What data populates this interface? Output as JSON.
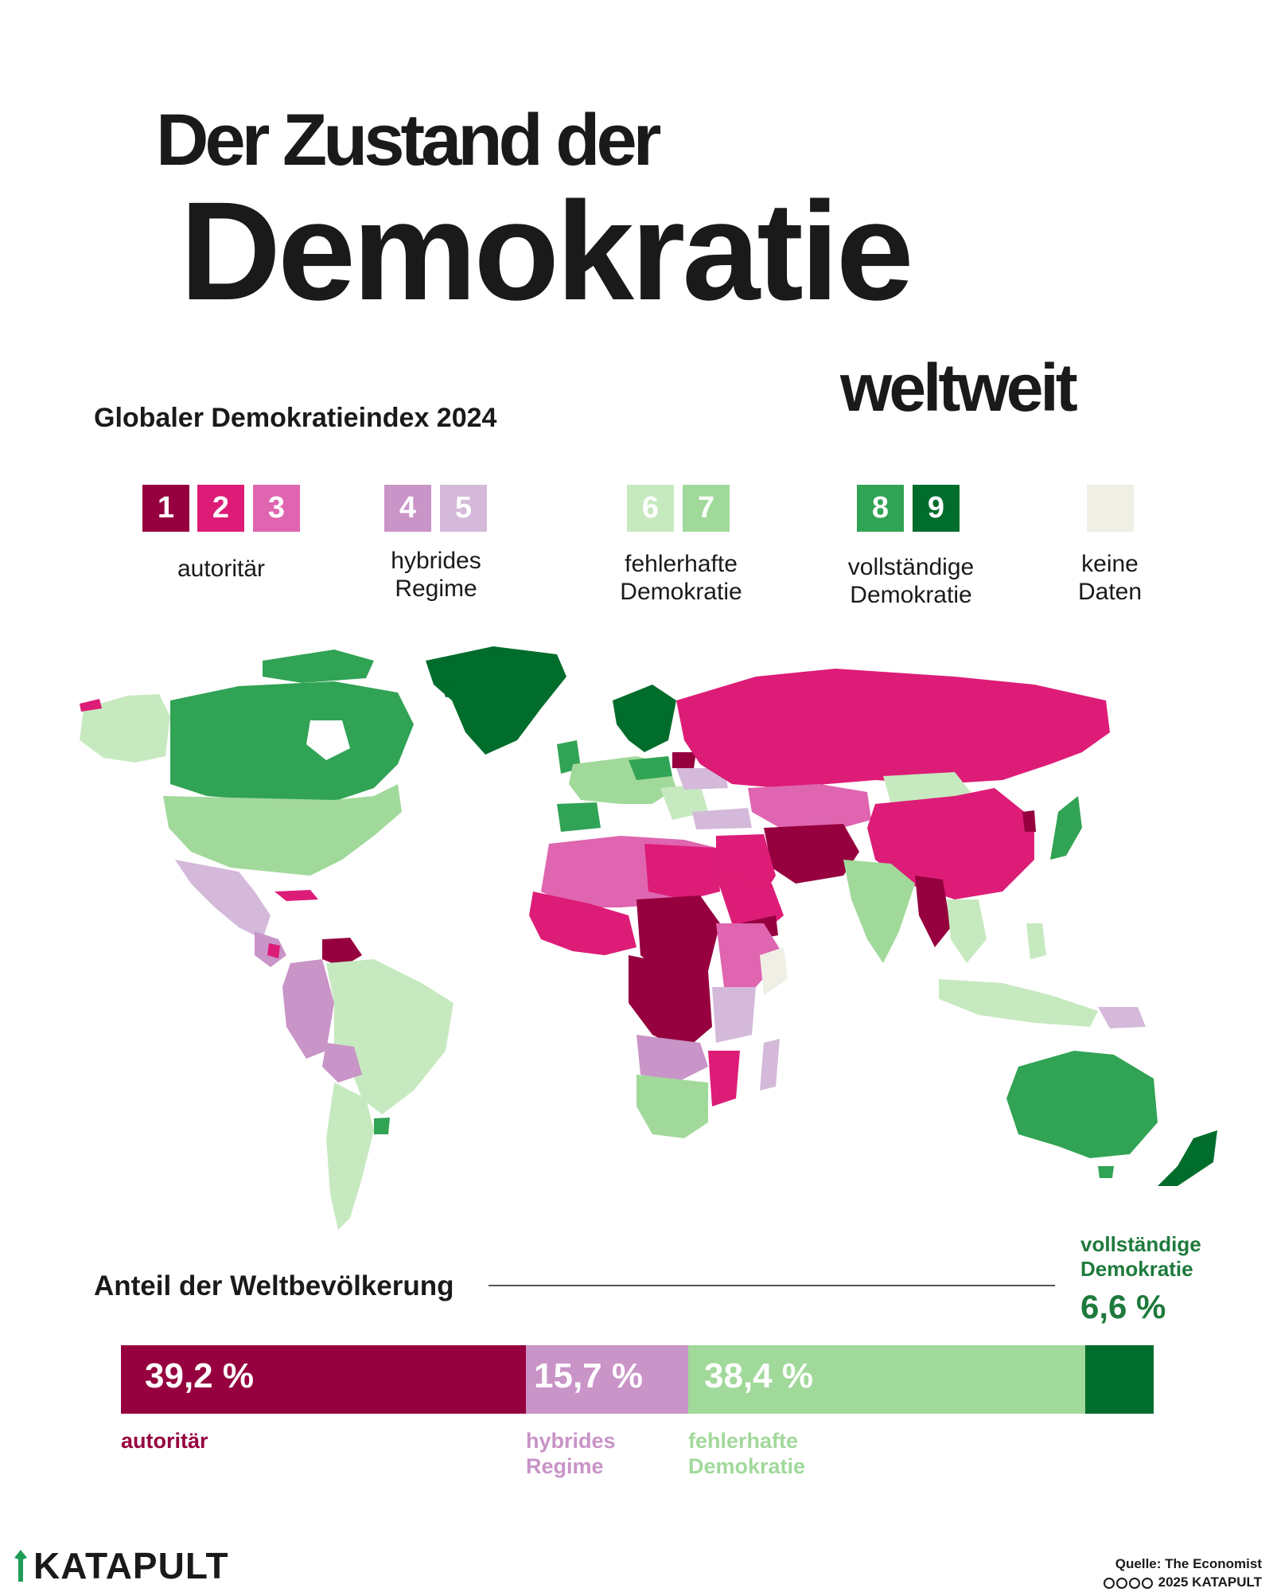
{
  "title": {
    "line1": "Der Zustand der",
    "line2": "Demokratie",
    "line3": "weltweit"
  },
  "subtitle": "Globaler Demokratieindex 2024",
  "colors": {
    "c1": "#96003f",
    "c2": "#dd1c77",
    "c3": "#df65b0",
    "c4": "#c994c7",
    "c5": "#d4b9da",
    "c6": "#c7e9c0",
    "c7": "#a1d99b",
    "c8": "#31a354",
    "c9": "#006d2c",
    "nodata": "#efefe6"
  },
  "legend": {
    "groups": [
      {
        "label": "autoritär",
        "items": [
          "1",
          "2",
          "3"
        ]
      },
      {
        "label_lines": [
          "hybrides",
          "Regime"
        ],
        "items": [
          "4",
          "5"
        ]
      },
      {
        "label_lines": [
          "fehlerhafte",
          "Demokratie"
        ],
        "items": [
          "6",
          "7"
        ]
      },
      {
        "label_lines": [
          "vollständige",
          "Demokratie"
        ],
        "items": [
          "8",
          "9"
        ]
      },
      {
        "label_lines": [
          "keine",
          "Daten"
        ],
        "items": [
          ""
        ]
      }
    ]
  },
  "population": {
    "title": "Anteil der Weltbevölkerung",
    "segments": [
      {
        "label": "autoritär",
        "value": 39.2,
        "display": "39,2 %"
      },
      {
        "label": "hybrides Regime",
        "label_lines": [
          "hybrides",
          "Regime"
        ],
        "value": 15.7,
        "display": "15,7 %"
      },
      {
        "label": "fehlerhafte Demokratie",
        "label_lines": [
          "fehlerhafte",
          "Demokratie"
        ],
        "value": 38.4,
        "display": "38,4 %"
      },
      {
        "label": "vollständige Demokratie",
        "label_lines": [
          "vollständige",
          "Demokratie"
        ],
        "value": 6.6,
        "display": "6,6 %"
      }
    ]
  },
  "footer": {
    "logo": "KATAPULT",
    "source": "Quelle: The Economist",
    "copyright": "2025 KATAPULT"
  }
}
